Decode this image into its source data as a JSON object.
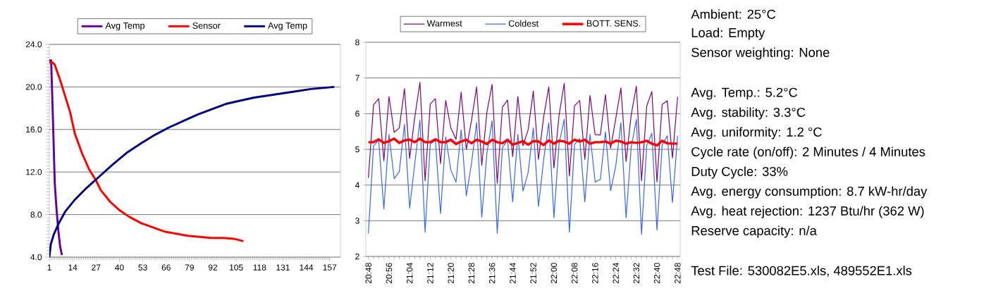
{
  "chart_data": [
    {
      "type": "line",
      "xlim": [
        1,
        163
      ],
      "xticks": [
        1,
        14,
        27,
        40,
        53,
        66,
        79,
        92,
        105,
        118,
        131,
        144,
        157
      ],
      "ylim": [
        4,
        24
      ],
      "yticks": [
        {
          "value": 4,
          "label": "4.0"
        },
        {
          "value": 8,
          "label": "8.0"
        },
        {
          "value": 12,
          "label": "12.0"
        },
        {
          "value": 16,
          "label": "16.0"
        },
        {
          "value": 20,
          "label": "20.0"
        },
        {
          "value": 24,
          "label": "24.0"
        }
      ],
      "grid": "y",
      "legend": "top",
      "marker": "none",
      "line_style": "solid",
      "series": [
        {
          "name": "Avg Temp",
          "color": "#660099",
          "x": [
            1,
            2,
            3,
            4,
            5,
            6,
            7,
            8
          ],
          "values": [
            22.5,
            22.5,
            17,
            11,
            8.5,
            6.5,
            5,
            4.2
          ]
        },
        {
          "name": "Sensor",
          "color": "#ff0000",
          "x": [
            1,
            2.7,
            4,
            7.3,
            12.6,
            15.2,
            19.1,
            23,
            27,
            29.6,
            34.9,
            40.1,
            45.4,
            52,
            58.5,
            65,
            71.7,
            78.2,
            84.8,
            91.3,
            97.9,
            104.5,
            109
          ],
          "values": [
            22.3,
            22.3,
            22.1,
            20.5,
            17.6,
            15.6,
            13.8,
            12.3,
            11.2,
            10.3,
            9.2,
            8.4,
            7.8,
            7.2,
            6.8,
            6.4,
            6.2,
            6.0,
            5.9,
            5.8,
            5.8,
            5.7,
            5.5
          ]
        },
        {
          "name": "Avg Temp",
          "color": "#000080",
          "x": [
            1,
            1.8,
            3.4,
            6,
            9.9,
            15.2,
            21.7,
            28.3,
            36.2,
            44,
            52,
            59.8,
            67.7,
            75.6,
            83.5,
            91.3,
            99.2,
            107,
            115,
            122.9,
            130.7,
            138.6,
            146.5,
            159.6
          ],
          "values": [
            4.0,
            5.2,
            6.1,
            7.1,
            8.3,
            9.4,
            10.5,
            11.5,
            12.7,
            13.8,
            14.7,
            15.5,
            16.2,
            16.8,
            17.4,
            17.9,
            18.4,
            18.7,
            19.0,
            19.2,
            19.4,
            19.6,
            19.8,
            20.0
          ]
        }
      ]
    },
    {
      "type": "line",
      "categories": [
        "20:48",
        null,
        null,
        null,
        "20:56",
        null,
        null,
        null,
        "21:04",
        null,
        null,
        null,
        "21:12",
        null,
        null,
        null,
        "21:20",
        null,
        null,
        null,
        "21:28",
        null,
        null,
        null,
        "21:36",
        null,
        null,
        null,
        "21:44",
        null,
        null,
        null,
        "21:52",
        null,
        null,
        null,
        "22:00",
        null,
        null,
        null,
        "22:08",
        null,
        null,
        null,
        "22:16",
        null,
        null,
        null,
        "22:24",
        null,
        null,
        null,
        "22:32",
        null,
        null,
        null,
        "22:40",
        null,
        null,
        null,
        "22:48"
      ],
      "ylim": [
        2,
        8
      ],
      "yticks": [
        2,
        3,
        4,
        5,
        6,
        7,
        8
      ],
      "grid": "y",
      "legend": "top",
      "marker": "none",
      "line_style": "solid",
      "series": [
        {
          "name": "Warmest",
          "color": "#800080",
          "values": [
            4.2,
            6.25,
            6.42,
            4.68,
            6.48,
            5.48,
            5.6,
            6.7,
            4.75,
            5.9,
            6.88,
            4.12,
            6.27,
            6.42,
            4.6,
            6.37,
            5.6,
            5.28,
            6.6,
            5.0,
            5.8,
            6.75,
            4.55,
            6.05,
            6.82,
            4.05,
            6.18,
            6.38,
            4.8,
            6.48,
            5.1,
            5.55,
            6.63,
            4.72,
            5.9,
            6.75,
            4.48,
            5.96,
            6.85,
            4.25,
            6.22,
            6.37,
            4.72,
            6.51,
            5.41,
            5.4,
            6.53,
            5.03,
            5.86,
            6.72,
            4.66,
            5.97,
            6.77,
            4.12,
            6.21,
            6.62,
            4.09,
            6.26,
            6.36,
            4.76,
            6.47
          ]
        },
        {
          "name": "Coldest",
          "color": "#3366ff",
          "values": [
            2.65,
            5.1,
            5.25,
            3.33,
            5.42,
            4.18,
            4.38,
            5.7,
            3.35,
            4.6,
            5.82,
            2.68,
            5.15,
            5.25,
            3.2,
            5.35,
            4.42,
            4.08,
            5.55,
            3.7,
            4.6,
            5.75,
            3.1,
            4.9,
            5.8,
            2.65,
            5.05,
            5.25,
            3.53,
            5.42,
            3.83,
            4.35,
            5.6,
            3.4,
            4.7,
            5.75,
            3.08,
            5.16,
            5.84,
            2.68,
            5.14,
            5.3,
            3.53,
            5.42,
            4.09,
            4.15,
            5.49,
            3.84,
            4.53,
            5.75,
            3.08,
            5.06,
            5.84,
            2.62,
            5.11,
            5.45,
            2.74,
            5.12,
            5.38,
            3.51,
            5.38
          ]
        },
        {
          "name": "BOTT. SENS.",
          "color": "#ff0000",
          "values": [
            5.2,
            5.2,
            5.28,
            5.18,
            5.23,
            5.3,
            5.18,
            5.25,
            5.27,
            5.2,
            5.3,
            5.2,
            5.2,
            5.28,
            5.2,
            5.2,
            5.27,
            5.15,
            5.22,
            5.27,
            5.17,
            5.27,
            5.22,
            5.15,
            5.27,
            5.2,
            5.17,
            5.27,
            5.13,
            5.18,
            5.23,
            5.13,
            5.23,
            5.22,
            5.12,
            5.25,
            5.16,
            5.24,
            5.22,
            5.16,
            5.27,
            5.22,
            5.27,
            5.16,
            5.2,
            5.2,
            5.22,
            5.16,
            5.24,
            5.22,
            5.16,
            5.2,
            5.18,
            5.2,
            5.24,
            5.16,
            5.11,
            5.24,
            5.17,
            5.16,
            5.16
          ]
        }
      ]
    },
    {
      "type": "other",
      "annotations": [
        "Ambient:  25°C",
        "Load:  Empty",
        "Sensor weighting:  None",
        "Avg. Temp.:  5.2°C",
        "Avg. stability:  3.3°C",
        "Avg. uniformity:  1.2 °C",
        "Cycle rate (on/off): 2 Minutes / 4 Minutes",
        "Duty Cycle: 33%",
        "Avg. energy consumption: 8.7 kW-hr/day",
        "Avg. heat rejection:  1237 Btu/hr (362 W)",
        "Reserve capacity:   n/a",
        "Test File: 530082E5.xls, 489552E1.xls"
      ]
    }
  ]
}
